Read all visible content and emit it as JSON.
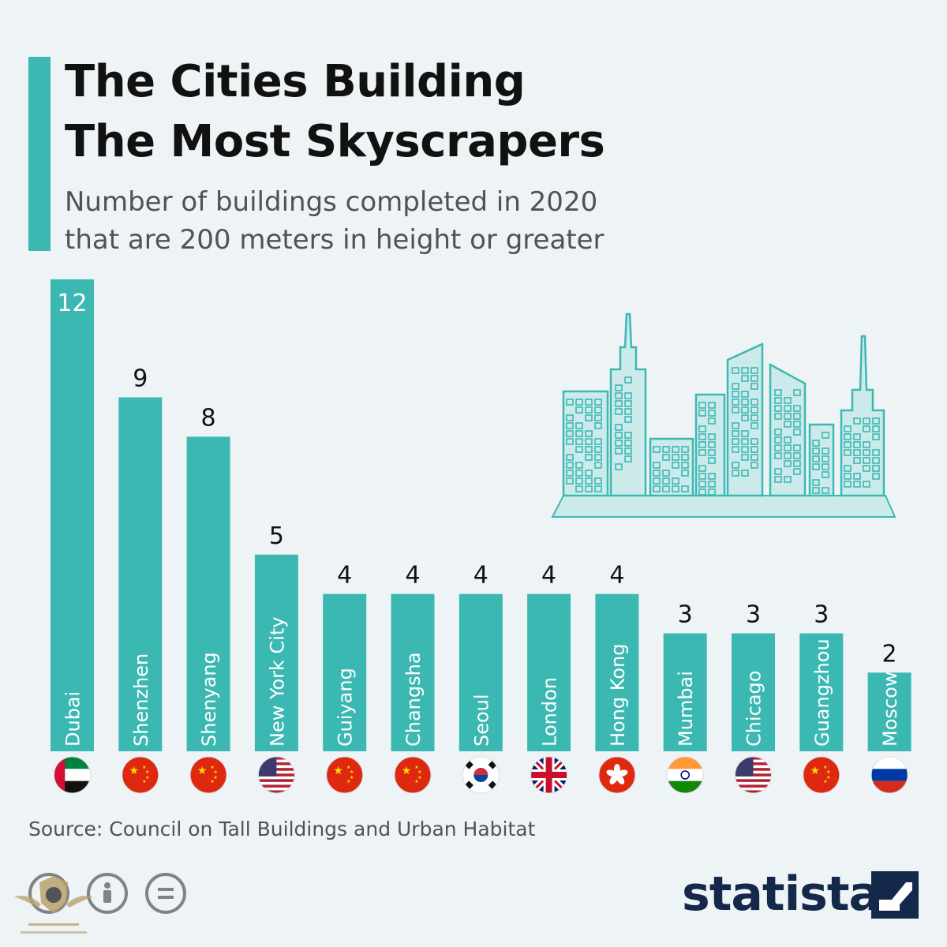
{
  "header": {
    "title_line1": "The Cities Building",
    "title_line2": "The Most Skyscrapers",
    "subtitle_line1": "Number of buildings completed in 2020",
    "subtitle_line2": "that are 200 meters in height or greater"
  },
  "footer": {
    "source": "Source: Council on Tall Buildings and Urban Habitat",
    "brand": "statista"
  },
  "colors": {
    "bar": "#3cb8b3",
    "illustration_fill": "#cdeaea",
    "illustration_stroke": "#3cb8b3",
    "title": "#111111",
    "brand": "#14284b"
  },
  "chart_data": {
    "type": "bar",
    "orientation": "vertical",
    "title": "The Cities Building The Most Skyscrapers",
    "subtitle": "Number of buildings completed in 2020 that are 200 meters in height or greater",
    "categories": [
      "Dubai",
      "Shenzhen",
      "Shenyang",
      "New York City",
      "Guiyang",
      "Changsha",
      "Seoul",
      "London",
      "Hong Kong",
      "Mumbai",
      "Chicago",
      "Guangzhou",
      "Moscow"
    ],
    "values": [
      12,
      9,
      8,
      5,
      4,
      4,
      4,
      4,
      4,
      3,
      3,
      3,
      2
    ],
    "flags": [
      "uae-flag-icon",
      "china-flag-icon",
      "china-flag-icon",
      "usa-flag-icon",
      "china-flag-icon",
      "china-flag-icon",
      "south-korea-flag-icon",
      "uk-flag-icon",
      "hong-kong-flag-icon",
      "india-flag-icon",
      "usa-flag-icon",
      "china-flag-icon",
      "russia-flag-icon"
    ],
    "ylim": [
      0,
      12
    ],
    "grid": false,
    "legend": "none",
    "data_labels": true
  }
}
